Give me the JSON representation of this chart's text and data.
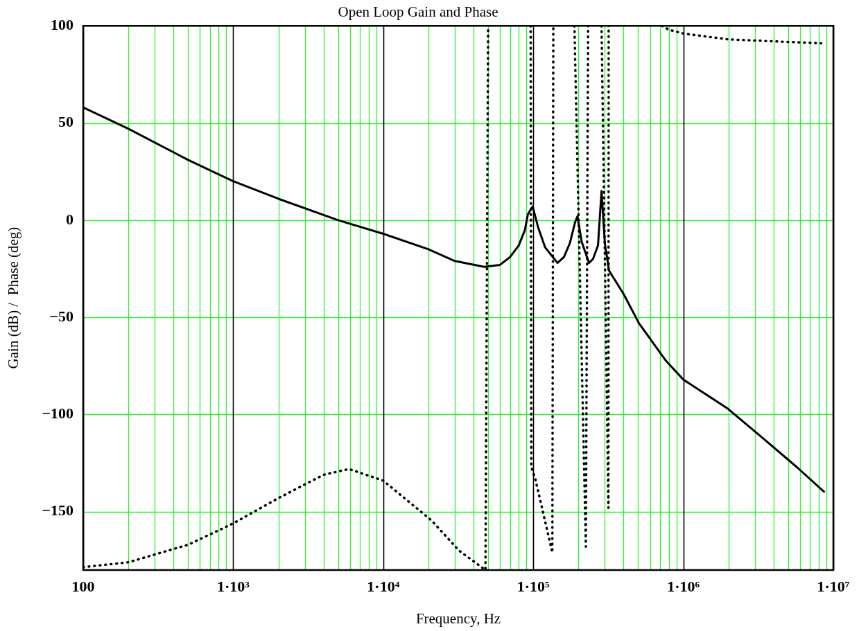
{
  "chart_data": {
    "type": "line",
    "title": "Open Loop Gain and Phase",
    "xlabel": "Frequency, Hz",
    "ylabel": "Gain (dB) /  Phase (deg)",
    "log": "x",
    "grid": true,
    "legend": false,
    "marker": "none",
    "xlim": [
      100,
      10000000
    ],
    "xticks": [
      100,
      {
        "value": 1000,
        "label": "1·10³"
      },
      {
        "value": 10000,
        "label": "1·10⁴"
      },
      {
        "value": 100000,
        "label": "1·10⁵"
      },
      {
        "value": 1000000,
        "label": "1·10⁶"
      },
      {
        "value": 10000000,
        "label": "1·10⁷"
      }
    ],
    "ylim": [
      -180,
      100
    ],
    "yticks": [
      -150,
      -100,
      -50,
      0,
      50,
      100
    ],
    "series": [
      {
        "color": "#000000",
        "line_style": "solid",
        "x": [
          100,
          200,
          500,
          1000,
          2000,
          5000,
          10000,
          20000,
          30000,
          47000,
          60000,
          70000,
          80000,
          88000,
          92000,
          99000,
          108000,
          120000,
          145000,
          160000,
          175000,
          190000,
          197000,
          210000,
          235000,
          250000,
          270000,
          285000,
          300000,
          320000,
          400000,
          506000,
          760000,
          1000000,
          1980000,
          3370000,
          5700000,
          8750000
        ],
        "values": [
          58,
          47,
          31,
          20,
          11,
          0,
          -7,
          -15,
          -21,
          -24,
          -23,
          -19,
          -13,
          -5,
          3,
          7,
          -4,
          -14,
          -22,
          -19,
          -12,
          -1,
          2,
          -11,
          -22,
          -20,
          -13,
          15,
          -12,
          -26,
          -38,
          -53,
          -72,
          -82,
          -97,
          -112,
          -127,
          -140
        ]
      },
      {
        "color": "#000000",
        "line_style": "dotted",
        "x": [
          100,
          200,
          500,
          1000,
          2000,
          4000,
          5900,
          10000,
          21000,
          32000,
          48000,
          50000,
          60000,
          96000,
          97000,
          103000,
          134000,
          136000,
          160000,
          188000,
          224000,
          232000,
          260000,
          285000,
          317000,
          318000,
          500000,
          720000,
          800000,
          1000000,
          2000000,
          4000000,
          8300000
        ],
        "values": [
          -178.5,
          -176,
          -167,
          -156,
          -143,
          -131,
          -128,
          -134,
          -154.5,
          -170,
          -180,
          100,
          null,
          100,
          -127,
          -133,
          -171,
          100,
          null,
          100,
          -168,
          100,
          null,
          100,
          -148,
          100,
          null,
          100,
          98,
          96,
          93,
          92,
          91
        ]
      }
    ]
  }
}
